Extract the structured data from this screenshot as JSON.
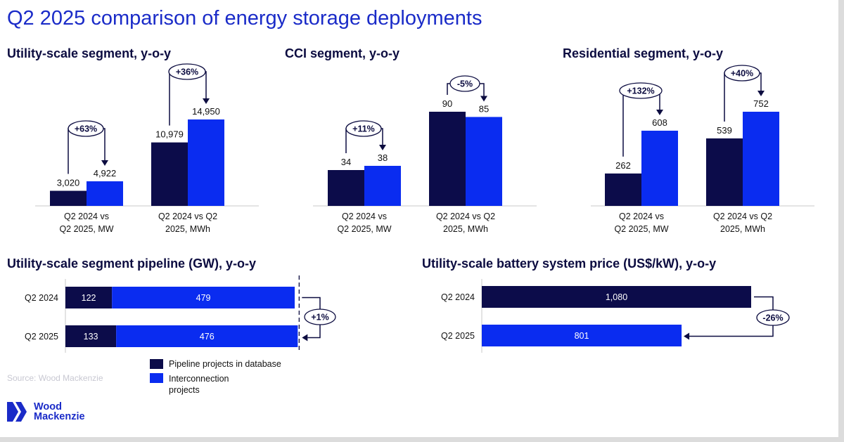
{
  "title": "Q2 2025 comparison of energy storage deployments",
  "colors": {
    "dark": "#0c0c4a",
    "bright": "#0a2cf0",
    "arrow": "#0c0c40",
    "title": "#1a2bc8"
  },
  "headings": {
    "utility": "Utility-scale segment, y-o-y",
    "cci": "CCI segment, y-o-y",
    "residential": "Residential segment, y-o-y",
    "pipeline": "Utility-scale segment pipeline (GW), y-o-y",
    "price": "Utility-scale battery system price (US$/kW), y-o-y"
  },
  "source": "Source: Wood Mackenzie",
  "logo": {
    "line1": "Wood",
    "line2": "Mackenzie"
  },
  "legend": {
    "pipeline": "Pipeline projects in database",
    "interconnection": "Interconnection projects"
  },
  "chart_data": [
    {
      "type": "bar",
      "title": "Utility-scale segment, y-o-y",
      "categories": [
        "Q2 2024 vs Q2 2025, MW",
        "Q2 2024 vs Q2 2025, MWh"
      ],
      "category_lines": [
        [
          "Q2 2024 vs",
          "Q2 2025, MW"
        ],
        [
          "Q2 2024 vs Q2",
          "2025, MWh"
        ]
      ],
      "series": [
        {
          "name": "Q2 2024",
          "values": [
            3020,
            10979
          ]
        },
        {
          "name": "Q2 2025",
          "values": [
            4922,
            14950
          ]
        }
      ],
      "labels": [
        [
          "3,020",
          "4,922"
        ],
        [
          "10,979",
          "14,950"
        ]
      ],
      "changes": [
        "+63%",
        "+36%"
      ]
    },
    {
      "type": "bar",
      "title": "CCI segment, y-o-y",
      "categories": [
        "Q2 2024 vs Q2 2025, MW",
        "Q2 2024 vs Q2 2025, MWh"
      ],
      "category_lines": [
        [
          "Q2 2024 vs",
          "Q2 2025, MW"
        ],
        [
          "Q2 2024 vs Q2",
          "2025, MWh"
        ]
      ],
      "series": [
        {
          "name": "Q2 2024",
          "values": [
            34,
            90
          ]
        },
        {
          "name": "Q2 2025",
          "values": [
            38,
            85
          ]
        }
      ],
      "labels": [
        [
          "34",
          "38"
        ],
        [
          "90",
          "85"
        ]
      ],
      "changes": [
        "+11%",
        "-5%"
      ]
    },
    {
      "type": "bar",
      "title": "Residential segment, y-o-y",
      "categories": [
        "Q2 2024 vs Q2 2025, MW",
        "Q2 2024 vs Q2 2025, MWh"
      ],
      "category_lines": [
        [
          "Q2 2024 vs",
          "Q2 2025, MW"
        ],
        [
          "Q2 2024 vs Q2",
          "2025, MWh"
        ]
      ],
      "series": [
        {
          "name": "Q2 2024",
          "values": [
            262,
            539
          ]
        },
        {
          "name": "Q2 2025",
          "values": [
            608,
            752
          ]
        }
      ],
      "labels": [
        [
          "262",
          "608"
        ],
        [
          "539",
          "752"
        ]
      ],
      "changes": [
        "+132%",
        "+40%"
      ]
    },
    {
      "type": "bar",
      "orientation": "horizontal",
      "stacked": true,
      "title": "Utility-scale segment pipeline (GW), y-o-y",
      "categories": [
        "Q2 2024",
        "Q2 2025"
      ],
      "series": [
        {
          "name": "Pipeline projects in database",
          "values": [
            122,
            133
          ],
          "labels": [
            "122",
            "133"
          ]
        },
        {
          "name": "Interconnection projects",
          "values": [
            479,
            476
          ],
          "labels": [
            "479",
            "476"
          ]
        }
      ],
      "change": "+1%"
    },
    {
      "type": "bar",
      "orientation": "horizontal",
      "title": "Utility-scale battery system price (US$/kW), y-o-y",
      "categories": [
        "Q2 2024",
        "Q2 2025"
      ],
      "values": [
        1080,
        801
      ],
      "labels": [
        "1,080",
        "801"
      ],
      "change": "-26%"
    }
  ]
}
